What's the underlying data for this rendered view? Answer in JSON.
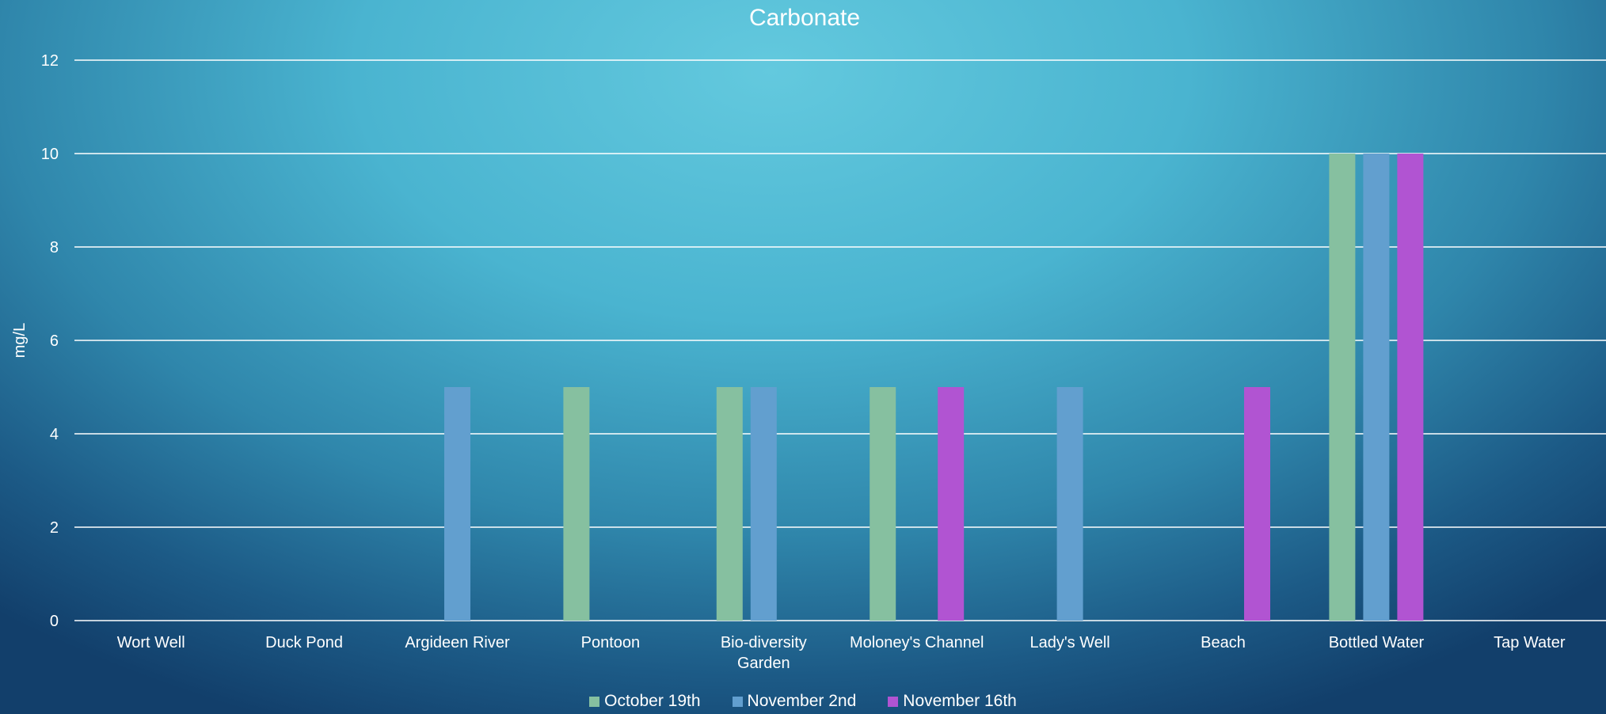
{
  "chart_data": {
    "type": "bar",
    "title": "Carbonate",
    "ylabel": "mg/L",
    "xlabel": "",
    "ylim": [
      0,
      12
    ],
    "yticks": [
      0,
      2,
      4,
      6,
      8,
      10,
      12
    ],
    "grid": true,
    "legend_position": "bottom",
    "categories": [
      "Wort Well",
      "Duck Pond",
      "Argideen River",
      "Pontoon",
      "Bio-diversity Garden",
      "Moloney's Channel",
      "Lady's Well",
      "Beach",
      "Bottled Water",
      "Tap Water"
    ],
    "series": [
      {
        "name": "October 19th",
        "color": "#86c0a0",
        "values": [
          0,
          0,
          0,
          5,
          5,
          5,
          0,
          0,
          10,
          0
        ]
      },
      {
        "name": "November 2nd",
        "color": "#629fcf",
        "values": [
          0,
          0,
          5,
          0,
          5,
          0,
          5,
          0,
          10,
          0
        ]
      },
      {
        "name": "November 16th",
        "color": "#b154d2",
        "values": [
          0,
          0,
          0,
          0,
          0,
          5,
          0,
          5,
          10,
          0
        ]
      }
    ]
  }
}
